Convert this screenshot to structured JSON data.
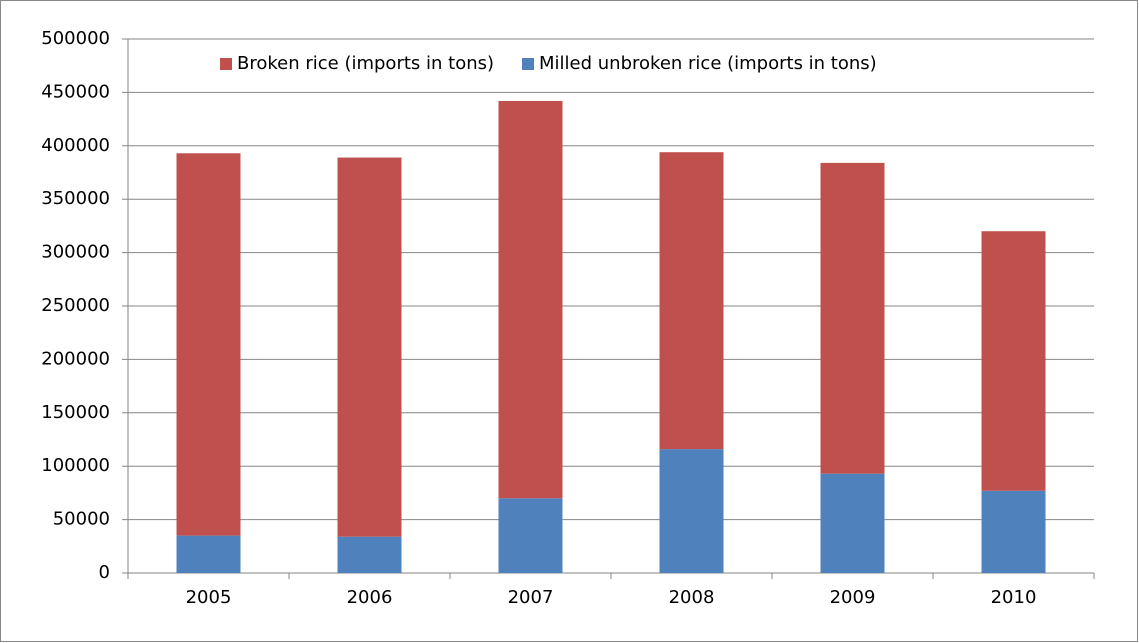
{
  "chart_data": {
    "type": "stacked_bar",
    "categories": [
      "2005",
      "2006",
      "2007",
      "2008",
      "2009",
      "2010"
    ],
    "series": [
      {
        "name": "Broken rice (imports in tons)",
        "color": "#c0504d",
        "values": [
          358000,
          355000,
          372000,
          278000,
          291000,
          243000
        ]
      },
      {
        "name": "Milled unbroken rice (imports in tons)",
        "color": "#4f81bd",
        "values": [
          35000,
          34000,
          70000,
          116000,
          93000,
          77000
        ]
      }
    ],
    "ylim": [
      0,
      500000
    ],
    "yticks": [
      0,
      50000,
      100000,
      150000,
      200000,
      250000,
      300000,
      350000,
      400000,
      450000,
      500000
    ],
    "grid": true,
    "legend": "top"
  }
}
